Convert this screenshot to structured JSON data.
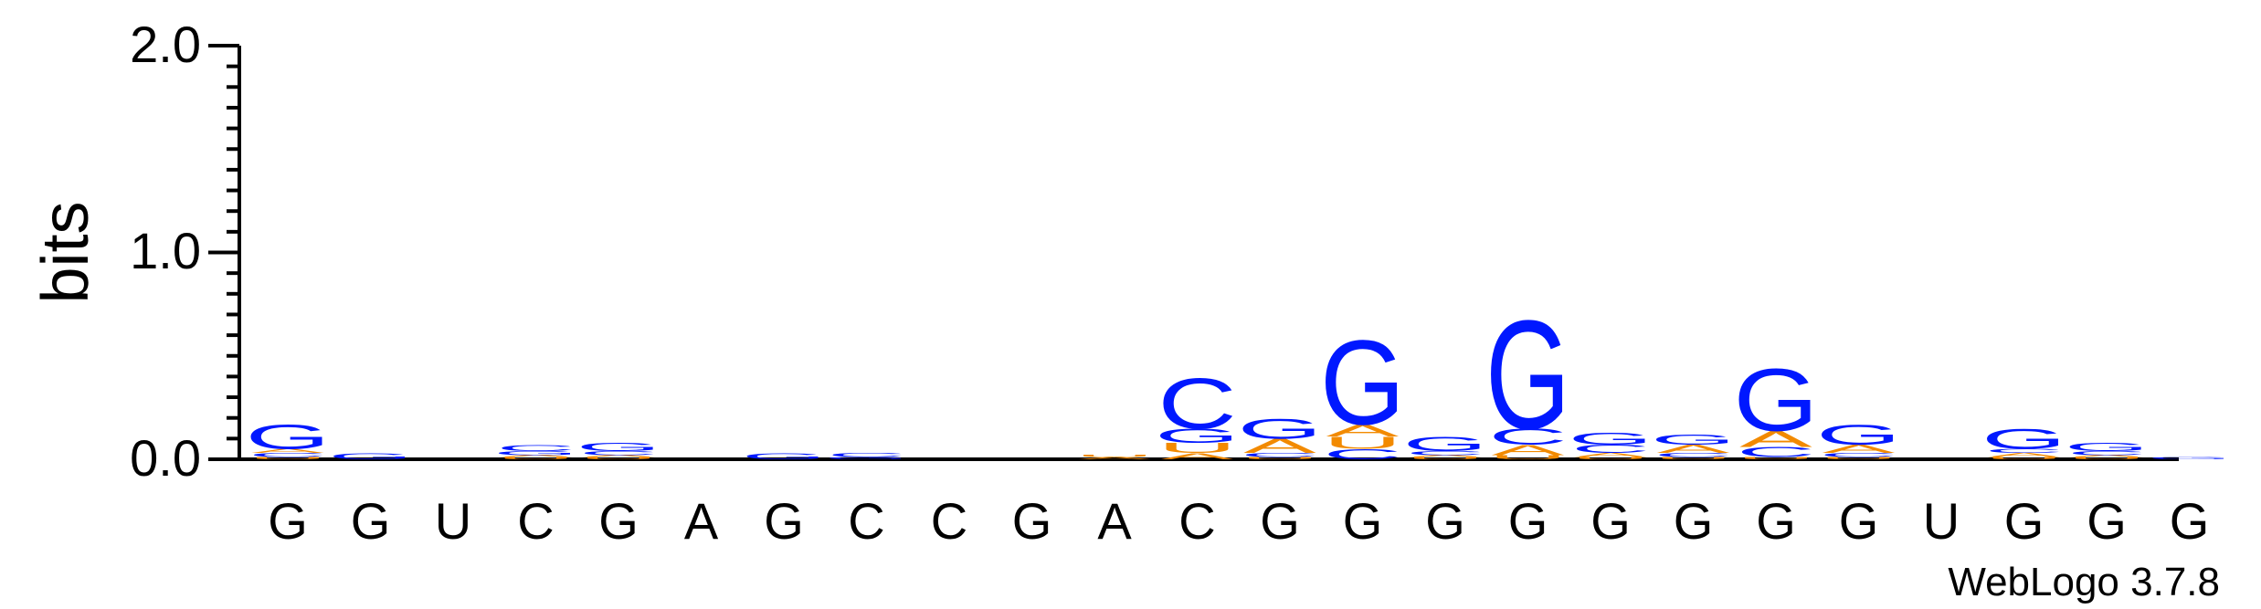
{
  "chart_data": {
    "type": "sequence-logo",
    "ylabel": "bits",
    "ylim": [
      0,
      2.0
    ],
    "yticks": [
      "0.0",
      "1.0",
      "2.0"
    ],
    "credit": "WebLogo 3.7.8",
    "colors": {
      "G": "#0018ff",
      "C": "#0018ff",
      "A": "#f28a00",
      "U": "#f28a00"
    },
    "positions": [
      {
        "label": "G",
        "stack": [
          {
            "letter": "U",
            "height": 0.01
          },
          {
            "letter": "C",
            "height": 0.02
          },
          {
            "letter": "A",
            "height": 0.02
          },
          {
            "letter": "G",
            "height": 0.12
          }
        ]
      },
      {
        "label": "G",
        "stack": [
          {
            "letter": "G",
            "height": 0.03
          }
        ]
      },
      {
        "label": "U",
        "stack": []
      },
      {
        "label": "C",
        "stack": [
          {
            "letter": "U",
            "height": 0.01
          },
          {
            "letter": "A",
            "height": 0.01
          },
          {
            "letter": "G",
            "height": 0.02
          },
          {
            "letter": "C",
            "height": 0.03
          }
        ]
      },
      {
        "label": "G",
        "stack": [
          {
            "letter": "U",
            "height": 0.01
          },
          {
            "letter": "A",
            "height": 0.01
          },
          {
            "letter": "C",
            "height": 0.02
          },
          {
            "letter": "G",
            "height": 0.04
          }
        ]
      },
      {
        "label": "A",
        "stack": []
      },
      {
        "label": "G",
        "stack": [
          {
            "letter": "G",
            "height": 0.03
          }
        ]
      },
      {
        "label": "C",
        "stack": [
          {
            "letter": "G",
            "height": 0.01
          },
          {
            "letter": "C",
            "height": 0.02
          }
        ]
      },
      {
        "label": "C",
        "stack": []
      },
      {
        "label": "G",
        "stack": []
      },
      {
        "label": "A",
        "stack": [
          {
            "letter": "A",
            "height": 0.01
          },
          {
            "letter": "U",
            "height": 0.01
          }
        ]
      },
      {
        "label": "C",
        "stack": [
          {
            "letter": "A",
            "height": 0.03
          },
          {
            "letter": "U",
            "height": 0.05
          },
          {
            "letter": "G",
            "height": 0.07
          },
          {
            "letter": "C",
            "height": 0.25
          }
        ]
      },
      {
        "label": "G",
        "stack": [
          {
            "letter": "U",
            "height": 0.01
          },
          {
            "letter": "C",
            "height": 0.02
          },
          {
            "letter": "A",
            "height": 0.07
          },
          {
            "letter": "G",
            "height": 0.1
          }
        ]
      },
      {
        "label": "G",
        "stack": [
          {
            "letter": "C",
            "height": 0.05
          },
          {
            "letter": "U",
            "height": 0.06
          },
          {
            "letter": "A",
            "height": 0.06
          },
          {
            "letter": "G",
            "height": 0.42
          }
        ]
      },
      {
        "label": "G",
        "stack": [
          {
            "letter": "U",
            "height": 0.01
          },
          {
            "letter": "A",
            "height": 0.01
          },
          {
            "letter": "C",
            "height": 0.02
          },
          {
            "letter": "G",
            "height": 0.07
          }
        ]
      },
      {
        "label": "G",
        "stack": [
          {
            "letter": "U",
            "height": 0.02
          },
          {
            "letter": "A",
            "height": 0.05
          },
          {
            "letter": "C",
            "height": 0.08
          },
          {
            "letter": "G",
            "height": 0.54
          }
        ]
      },
      {
        "label": "G",
        "stack": [
          {
            "letter": "U",
            "height": 0.01
          },
          {
            "letter": "A",
            "height": 0.02
          },
          {
            "letter": "C",
            "height": 0.04
          },
          {
            "letter": "G",
            "height": 0.06
          }
        ]
      },
      {
        "label": "G",
        "stack": [
          {
            "letter": "U",
            "height": 0.01
          },
          {
            "letter": "C",
            "height": 0.02
          },
          {
            "letter": "A",
            "height": 0.04
          },
          {
            "letter": "G",
            "height": 0.05
          }
        ]
      },
      {
        "label": "G",
        "stack": [
          {
            "letter": "U",
            "height": 0.01
          },
          {
            "letter": "C",
            "height": 0.05
          },
          {
            "letter": "A",
            "height": 0.08
          },
          {
            "letter": "G",
            "height": 0.31
          }
        ]
      },
      {
        "label": "G",
        "stack": [
          {
            "letter": "U",
            "height": 0.01
          },
          {
            "letter": "C",
            "height": 0.02
          },
          {
            "letter": "A",
            "height": 0.04
          },
          {
            "letter": "G",
            "height": 0.1
          }
        ]
      },
      {
        "label": "U",
        "stack": []
      },
      {
        "label": "G",
        "stack": [
          {
            "letter": "U",
            "height": 0.01
          },
          {
            "letter": "A",
            "height": 0.02
          },
          {
            "letter": "C",
            "height": 0.02
          },
          {
            "letter": "G",
            "height": 0.1
          }
        ]
      },
      {
        "label": "G",
        "stack": [
          {
            "letter": "U",
            "height": 0.01
          },
          {
            "letter": "A",
            "height": 0.01
          },
          {
            "letter": "C",
            "height": 0.02
          },
          {
            "letter": "G",
            "height": 0.04
          }
        ]
      },
      {
        "label": "G",
        "stack": [
          {
            "letter": "G",
            "height": 0.01
          }
        ]
      }
    ]
  }
}
